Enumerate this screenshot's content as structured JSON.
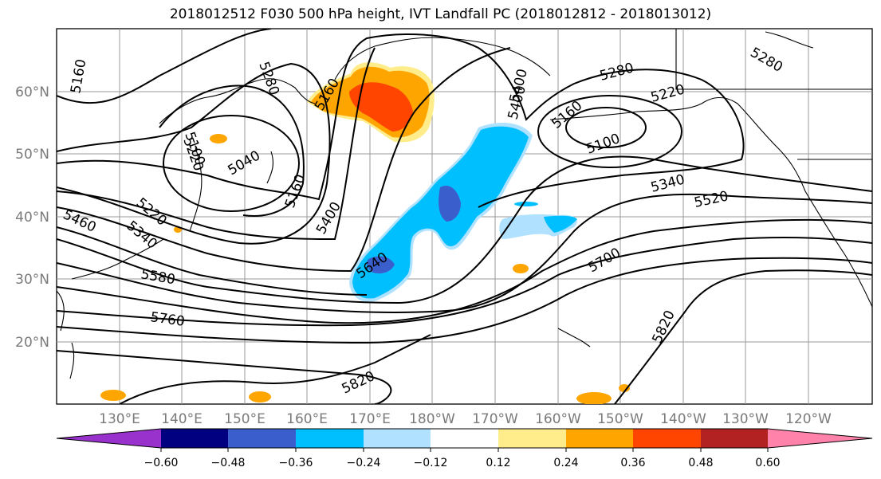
{
  "title": "2018012512 F030 500 hPa height, IVT Landfall PC (2018012812 - 2018013012)",
  "lon_labels": [
    "130°E",
    "140°E",
    "150°E",
    "160°E",
    "170°E",
    "180°W",
    "170°W",
    "160°W",
    "150°W",
    "140°W",
    "130°W",
    "120°W"
  ],
  "lat_labels": [
    "60°N",
    "50°N",
    "40°N",
    "30°N",
    "20°N"
  ],
  "contour_labels": [
    "5160",
    "5280",
    "5040",
    "5100",
    "5160",
    "5220",
    "5280",
    "5400",
    "5160",
    "5400",
    "5220",
    "5340",
    "5460",
    "5580",
    "5640",
    "5760",
    "5820",
    "5820",
    "5700",
    "5520",
    "5340",
    "5220",
    "5280",
    "5100",
    "5160",
    "5400"
  ],
  "colorbar": {
    "ticks": [
      "−0.60",
      "−0.48",
      "−0.36",
      "−0.24",
      "−0.12",
      "0.12",
      "0.24",
      "0.36",
      "0.48",
      "0.60"
    ],
    "colors": [
      "#9932cc",
      "#000080",
      "#3a5fcd",
      "#00bfff",
      "#b0e2ff",
      "#ffffff",
      "#ffec8b",
      "#ffa500",
      "#ff4500",
      "#b22222",
      "#ff82ab"
    ]
  }
}
